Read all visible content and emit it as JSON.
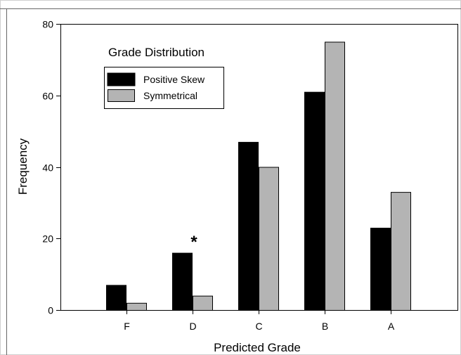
{
  "chart_data": {
    "type": "bar",
    "categories": [
      "F",
      "D",
      "C",
      "B",
      "A"
    ],
    "series": [
      {
        "name": "Positive Skew",
        "values": [
          7,
          16,
          47,
          61,
          23
        ],
        "color": "#000000"
      },
      {
        "name": "Symmetrical",
        "values": [
          2,
          4,
          40,
          75,
          33
        ],
        "color": "#b4b4b4"
      }
    ],
    "xlabel": "Predicted Grade",
    "ylabel": "Frequency",
    "ylim": [
      0,
      80
    ],
    "yticks": [
      0,
      20,
      40,
      60,
      80
    ],
    "legend": {
      "title": "Grade Distribution",
      "placement": "top-left"
    },
    "grid": false,
    "annotations": [
      {
        "text": "*",
        "category": "D"
      }
    ]
  }
}
